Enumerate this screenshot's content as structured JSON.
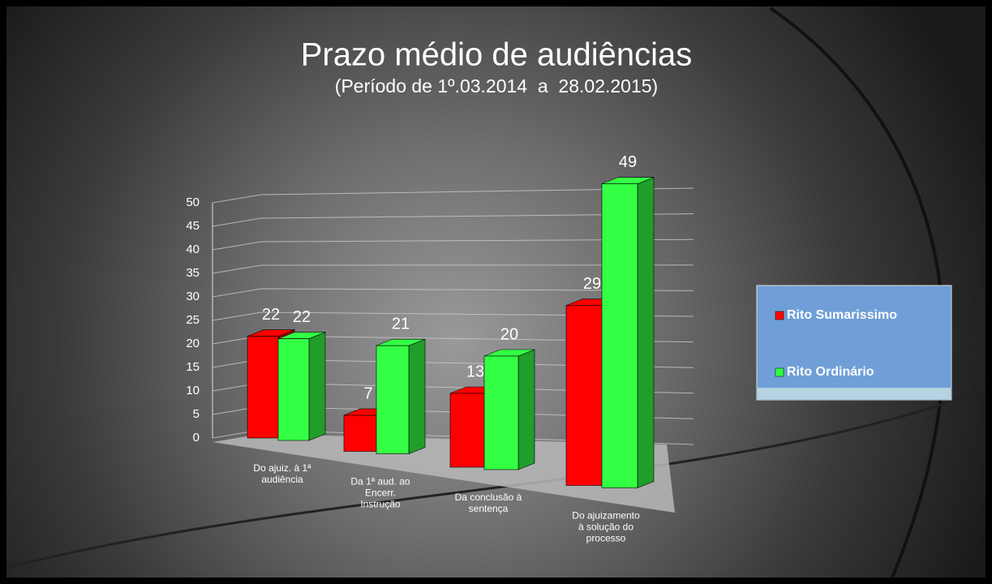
{
  "chart_data": {
    "type": "bar3d",
    "title": "Prazo médio de audiências",
    "subtitle": "(Período de 1º.03.2014  a  28.02.2015)",
    "categories": [
      "Do ajuiz. à 1ª\naudiência",
      "Da 1ª aud. ao\nEncerr.\nInstrução",
      "Da conclusão à\nsentença",
      "Do ajuizamento\nà solução do\nprocesso"
    ],
    "series": [
      {
        "name": "Rito Sumarissimo",
        "color": "#ff0000",
        "values": [
          22,
          7,
          13,
          29
        ]
      },
      {
        "name": "Rito Ordinário",
        "color": "#33ff44",
        "values": [
          22,
          21,
          20,
          49
        ]
      }
    ],
    "ylim": [
      0,
      50
    ],
    "yticks": [
      0,
      5,
      10,
      15,
      20,
      25,
      30,
      35,
      40,
      45,
      50
    ],
    "grid": true,
    "legend": "right"
  }
}
